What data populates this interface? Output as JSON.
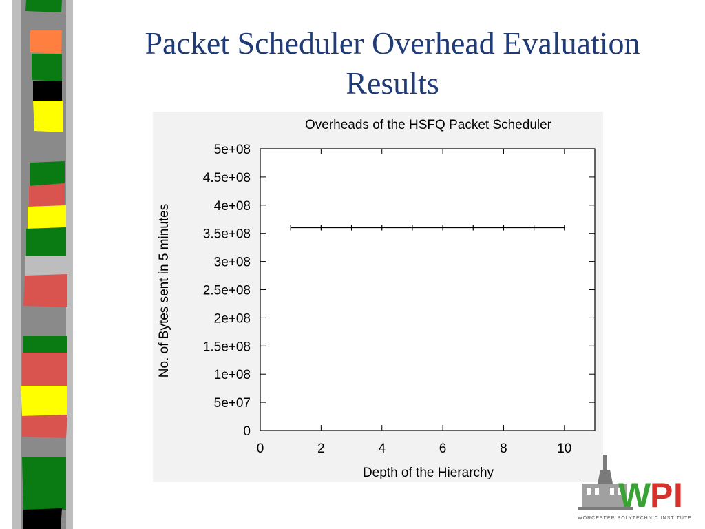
{
  "slide": {
    "title_line1": "Packet Scheduler Overhead Evaluation",
    "title_line2": "Results"
  },
  "colors": {
    "title": "#1f3b78",
    "strip_gray": "#8a8a8a",
    "strip_light": "#bdbdbd",
    "green": "#0a7a12",
    "orange": "#ff7f40",
    "black": "#000000",
    "yellow": "#ffff00",
    "red": "#d9534f",
    "logo_green": "#3aa335",
    "logo_red": "#d6322a"
  },
  "logo": {
    "text_w": "W",
    "text_p": "P",
    "text_i": "I",
    "subtitle": "WORCESTER POLYTECHNIC INSTITUTE"
  },
  "chart_data": {
    "type": "line",
    "title": "Overheads of the HSFQ Packet Scheduler",
    "xlabel": "Depth of the Hierarchy",
    "ylabel": "No. of Bytes sent in 5 minutes",
    "xlim": [
      0,
      11
    ],
    "ylim": [
      0,
      500000000
    ],
    "x_ticks": [
      0,
      2,
      4,
      6,
      8,
      10
    ],
    "y_ticks": [
      0,
      50000000,
      100000000,
      150000000,
      200000000,
      250000000,
      300000000,
      350000000,
      400000000,
      450000000,
      500000000
    ],
    "x_tick_labels": [
      "0",
      "2",
      "4",
      "6",
      "8",
      "10"
    ],
    "y_tick_labels": [
      "0",
      "5e+07",
      "1e+08",
      "1.5e+08",
      "2e+08",
      "2.5e+08",
      "3e+08",
      "3.5e+08",
      "4e+08",
      "4.5e+08",
      "5e+08"
    ],
    "grid": false,
    "series": [
      {
        "x": [
          1,
          2,
          3,
          4,
          5,
          6,
          7,
          8,
          9,
          10
        ],
        "values": [
          360000000,
          360000000,
          360000000,
          360000000,
          360000000,
          360000000,
          360000000,
          360000000,
          360000000,
          360000000
        ],
        "color": "#000000"
      }
    ]
  }
}
